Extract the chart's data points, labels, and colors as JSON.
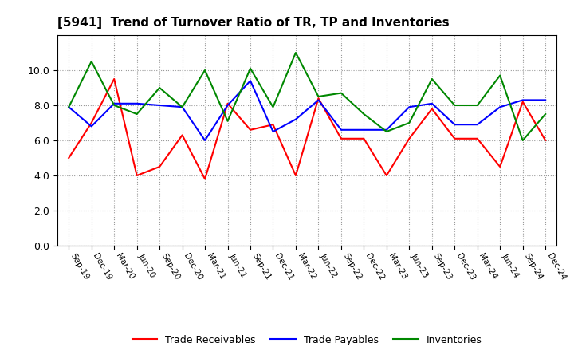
{
  "title": "[5941]  Trend of Turnover Ratio of TR, TP and Inventories",
  "labels": [
    "Sep-19",
    "Dec-19",
    "Mar-20",
    "Jun-20",
    "Sep-20",
    "Dec-20",
    "Mar-21",
    "Jun-21",
    "Sep-21",
    "Dec-21",
    "Mar-22",
    "Jun-22",
    "Sep-22",
    "Dec-22",
    "Mar-23",
    "Jun-23",
    "Sep-23",
    "Dec-23",
    "Mar-24",
    "Jun-24",
    "Sep-24",
    "Dec-24"
  ],
  "trade_receivables": [
    5.0,
    7.0,
    9.5,
    4.0,
    4.5,
    6.3,
    3.8,
    8.1,
    6.6,
    6.9,
    4.0,
    8.4,
    6.1,
    6.1,
    4.0,
    6.1,
    7.8,
    6.1,
    6.1,
    4.5,
    8.2,
    6.0
  ],
  "trade_payables": [
    7.9,
    6.8,
    8.1,
    8.1,
    8.0,
    7.9,
    6.0,
    8.0,
    9.4,
    6.5,
    7.2,
    8.3,
    6.6,
    6.6,
    6.6,
    7.9,
    8.1,
    6.9,
    6.9,
    7.9,
    8.3,
    8.3
  ],
  "inventories": [
    7.9,
    10.5,
    8.0,
    7.5,
    9.0,
    7.9,
    10.0,
    7.1,
    10.1,
    7.9,
    11.0,
    8.5,
    8.7,
    7.5,
    6.5,
    7.0,
    9.5,
    8.0,
    8.0,
    9.7,
    6.0,
    7.5
  ],
  "ylim": [
    0.0,
    12.0
  ],
  "yticks": [
    0.0,
    2.0,
    4.0,
    6.0,
    8.0,
    10.0
  ],
  "line_colors": {
    "trade_receivables": "#ff0000",
    "trade_payables": "#0000ff",
    "inventories": "#008800"
  },
  "legend_labels": [
    "Trade Receivables",
    "Trade Payables",
    "Inventories"
  ],
  "background_color": "#ffffff",
  "grid_color": "#999999"
}
